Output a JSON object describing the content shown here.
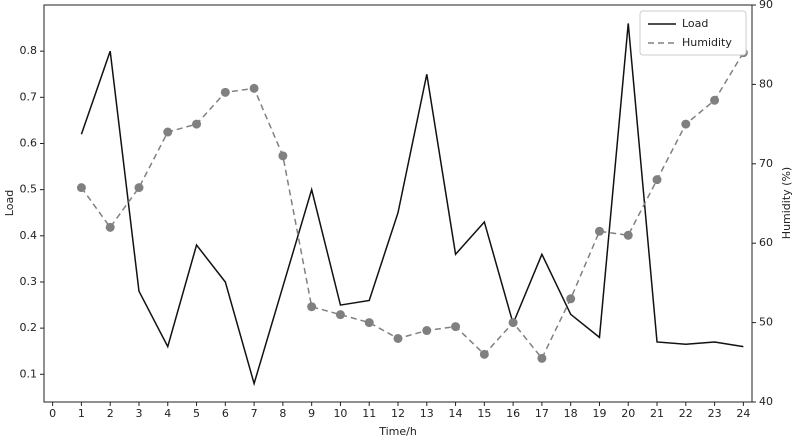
{
  "chart_data": {
    "type": "line",
    "x_label": "Time/h",
    "y_label": "Load",
    "y2_label": "Humidity (%)",
    "x": [
      1,
      2,
      3,
      4,
      5,
      6,
      7,
      8,
      9,
      10,
      11,
      12,
      13,
      14,
      15,
      16,
      17,
      18,
      19,
      20,
      21,
      22,
      23,
      24
    ],
    "xlim": [
      -0.3,
      24.3
    ],
    "xticks": [
      0,
      1,
      2,
      3,
      4,
      5,
      6,
      7,
      8,
      9,
      10,
      11,
      12,
      13,
      14,
      15,
      16,
      17,
      18,
      19,
      20,
      21,
      22,
      23,
      24
    ],
    "ylim": [
      0.04,
      0.9
    ],
    "yticks": [
      0.1,
      0.2,
      0.3,
      0.4,
      0.5,
      0.6,
      0.7,
      0.8
    ],
    "y2lim": [
      40,
      90
    ],
    "y2ticks": [
      40,
      50,
      60,
      70,
      80,
      90
    ],
    "legend": "upper right",
    "series": [
      {
        "name": "Load",
        "color": "#111111",
        "style": "solid",
        "values": [
          0.62,
          0.8,
          0.28,
          0.16,
          0.38,
          0.3,
          0.08,
          0.29,
          0.5,
          0.25,
          0.26,
          0.45,
          0.75,
          0.36,
          0.43,
          0.21,
          0.36,
          0.23,
          0.18,
          0.86,
          0.17,
          0.165,
          0.17,
          0.16
        ]
      },
      {
        "name": "Humidity",
        "color": "#808080",
        "style": "dashed",
        "axis": "y2",
        "values": [
          67,
          62,
          67,
          74,
          75,
          79,
          79.5,
          71,
          52,
          51,
          50,
          48,
          49,
          49.5,
          46,
          50,
          45.5,
          53,
          61.5,
          61,
          68,
          75,
          78,
          84
        ]
      }
    ]
  }
}
